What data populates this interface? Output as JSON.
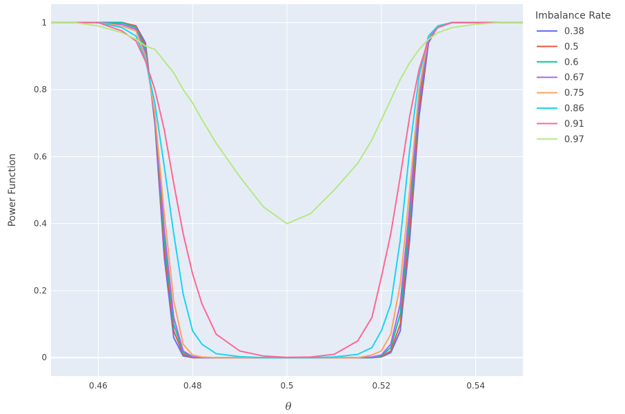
{
  "chart_data": {
    "type": "line",
    "xlabel": "θ",
    "ylabel": "Power Function",
    "xlim": [
      0.45,
      0.55
    ],
    "ylim": [
      -0.055,
      1.055
    ],
    "xticks": [
      0.46,
      0.48,
      0.5,
      0.52,
      0.54
    ],
    "xtick_labels": [
      "0.46",
      "0.48",
      "0.5",
      "0.52",
      "0.54"
    ],
    "yticks": [
      0,
      0.2,
      0.4,
      0.6,
      0.8,
      1
    ],
    "ytick_labels": [
      "0",
      "0.2",
      "0.4",
      "0.6",
      "0.8",
      "1"
    ],
    "grid": true,
    "plot_background": "#e5ecf6",
    "legend": {
      "title": "Imbalance Rate",
      "placement": "right"
    },
    "x": [
      0.45,
      0.455,
      0.46,
      0.465,
      0.468,
      0.47,
      0.472,
      0.474,
      0.476,
      0.478,
      0.48,
      0.482,
      0.485,
      0.49,
      0.495,
      0.5,
      0.505,
      0.51,
      0.515,
      0.518,
      0.52,
      0.522,
      0.524,
      0.526,
      0.528,
      0.53,
      0.532,
      0.535,
      0.54,
      0.545,
      0.55
    ],
    "series": [
      {
        "name": "0.38",
        "color": "#636efa",
        "values": [
          1,
          1,
          1,
          1,
          0.99,
          0.94,
          0.7,
          0.3,
          0.06,
          0.005,
          0,
          0,
          0,
          0,
          0,
          0,
          0,
          0,
          0,
          0,
          0.002,
          0.015,
          0.08,
          0.35,
          0.72,
          0.94,
          0.99,
          1,
          1,
          1,
          1
        ]
      },
      {
        "name": "0.5",
        "color": "#ef553b",
        "values": [
          1,
          1,
          1,
          1,
          0.99,
          0.93,
          0.71,
          0.32,
          0.08,
          0.01,
          0,
          0,
          0,
          0,
          0,
          0,
          0,
          0,
          0,
          0,
          0.003,
          0.02,
          0.1,
          0.38,
          0.74,
          0.95,
          0.99,
          1,
          1,
          1,
          1
        ]
      },
      {
        "name": "0.6",
        "color": "#00cc96",
        "values": [
          1,
          1,
          1,
          1,
          0.985,
          0.92,
          0.72,
          0.35,
          0.1,
          0.015,
          0.002,
          0,
          0,
          0,
          0,
          0,
          0,
          0,
          0,
          0,
          0.005,
          0.03,
          0.13,
          0.42,
          0.77,
          0.95,
          0.99,
          1,
          1,
          1,
          1
        ]
      },
      {
        "name": "0.67",
        "color": "#ab63fa",
        "values": [
          1,
          1,
          1,
          0.995,
          0.98,
          0.91,
          0.72,
          0.38,
          0.12,
          0.02,
          0.003,
          0,
          0,
          0,
          0,
          0,
          0,
          0,
          0,
          0.002,
          0.008,
          0.04,
          0.16,
          0.45,
          0.78,
          0.95,
          0.99,
          1,
          1,
          1,
          1
        ]
      },
      {
        "name": "0.75",
        "color": "#ffa15a",
        "values": [
          1,
          1,
          1,
          0.99,
          0.975,
          0.9,
          0.73,
          0.43,
          0.17,
          0.04,
          0.008,
          0.002,
          0,
          0,
          0,
          0,
          0,
          0,
          0,
          0.008,
          0.02,
          0.07,
          0.22,
          0.5,
          0.8,
          0.96,
          0.99,
          1,
          1,
          1,
          1
        ]
      },
      {
        "name": "0.86",
        "color": "#19d3f3",
        "values": [
          1,
          1,
          1,
          0.985,
          0.96,
          0.89,
          0.76,
          0.57,
          0.37,
          0.19,
          0.08,
          0.04,
          0.012,
          0.003,
          0,
          0,
          0,
          0.002,
          0.01,
          0.03,
          0.08,
          0.16,
          0.35,
          0.62,
          0.84,
          0.96,
          0.99,
          1,
          1,
          1,
          1
        ]
      },
      {
        "name": "0.91",
        "color": "#ff6692",
        "values": [
          1,
          1,
          1,
          0.975,
          0.945,
          0.885,
          0.8,
          0.68,
          0.52,
          0.37,
          0.25,
          0.16,
          0.07,
          0.02,
          0.005,
          0.001,
          0.002,
          0.01,
          0.05,
          0.12,
          0.24,
          0.37,
          0.54,
          0.72,
          0.86,
          0.95,
          0.985,
          1,
          1,
          1,
          1
        ]
      },
      {
        "name": "0.97",
        "color": "#b6e880",
        "values": [
          1,
          1,
          0.99,
          0.97,
          0.95,
          0.93,
          0.92,
          0.885,
          0.85,
          0.8,
          0.76,
          0.71,
          0.64,
          0.54,
          0.45,
          0.4,
          0.43,
          0.5,
          0.58,
          0.65,
          0.71,
          0.77,
          0.83,
          0.88,
          0.92,
          0.95,
          0.97,
          0.985,
          0.995,
          1,
          1
        ]
      }
    ]
  }
}
